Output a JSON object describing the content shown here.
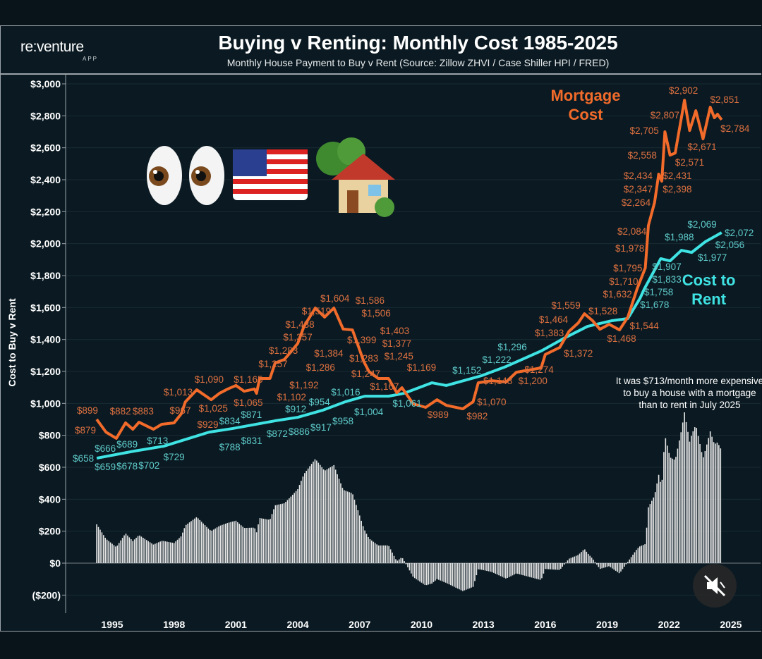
{
  "header": {
    "logo": "re:venture",
    "logo_sub": "APP",
    "title": "Buying v Renting: Monthly Cost 1985-2025",
    "subtitle": "Monthly House Payment to Buy v Rent (Source: Zillow ZHVI / Case Shiller HPI / FRED)"
  },
  "decorations": [
    "eyes-emoji",
    "us-flag-emoji",
    "house-with-tree-emoji"
  ],
  "mute_button": {
    "icon": "muted-speaker-icon"
  },
  "colors": {
    "mortgage": "#f26b2a",
    "mortgage_label": "#dd7040",
    "rent": "#3fe3e3",
    "rent_label": "#5ecbcb",
    "diff": "#e6e6e6",
    "grid": "#182a33"
  },
  "chart_data": {
    "type": "line",
    "title": "Buying v Renting: Monthly Cost 1985-2025",
    "ylabel": "Cost to Buy v Rent",
    "xlabel": "",
    "ylim": [
      -250,
      3050
    ],
    "xlim": [
      1992.5,
      2026.4
    ],
    "grid": true,
    "y_ticks": [
      {
        "value": 3000,
        "label": "$3,000"
      },
      {
        "value": 2800,
        "label": "$2,800"
      },
      {
        "value": 2600,
        "label": "$2,600"
      },
      {
        "value": 2400,
        "label": "$2,400"
      },
      {
        "value": 2200,
        "label": "$2,200"
      },
      {
        "value": 2000,
        "label": "$2,000"
      },
      {
        "value": 1800,
        "label": "$1,800"
      },
      {
        "value": 1600,
        "label": "$1,600"
      },
      {
        "value": 1400,
        "label": "$1,400"
      },
      {
        "value": 1200,
        "label": "$1,200"
      },
      {
        "value": 1000,
        "label": "$1,000"
      },
      {
        "value": 800,
        "label": "$800"
      },
      {
        "value": 600,
        "label": "$600"
      },
      {
        "value": 400,
        "label": "$400"
      },
      {
        "value": 200,
        "label": "$200"
      },
      {
        "value": 0,
        "label": "$0"
      },
      {
        "value": -200,
        "label": "($200)"
      }
    ],
    "x_ticks": [
      {
        "value": 1995,
        "label": "1995"
      },
      {
        "value": 1998,
        "label": "1998"
      },
      {
        "value": 2001,
        "label": "2001"
      },
      {
        "value": 2004,
        "label": "2004"
      },
      {
        "value": 2007,
        "label": "2007"
      },
      {
        "value": 2010,
        "label": "2010"
      },
      {
        "value": 2013,
        "label": "2013"
      },
      {
        "value": 2016,
        "label": "2016"
      },
      {
        "value": 2019,
        "label": "2019"
      },
      {
        "value": 2022,
        "label": "2022"
      },
      {
        "value": 2025,
        "label": "2025"
      }
    ],
    "series": [
      {
        "name": "Mortgage Cost",
        "legend_lines": [
          "Mortgage",
          "Cost"
        ],
        "legend_at": [
          2021.0,
          2780
        ],
        "points": [
          [
            1994.25,
            900
          ],
          [
            1994.7,
            820
          ],
          [
            1995.2,
            781
          ],
          [
            1995.65,
            878
          ],
          [
            1996.0,
            838
          ],
          [
            1996.3,
            882
          ],
          [
            1997.0,
            838
          ],
          [
            1997.4,
            869
          ],
          [
            1998.0,
            878
          ],
          [
            1998.35,
            935
          ],
          [
            1998.55,
            1010
          ],
          [
            1999.1,
            1085
          ],
          [
            1999.8,
            1023
          ],
          [
            2000.2,
            1063
          ],
          [
            2000.6,
            1090
          ],
          [
            2001.0,
            1112
          ],
          [
            2001.4,
            1076
          ],
          [
            2001.9,
            1090
          ],
          [
            2002.0,
            1063
          ],
          [
            2002.15,
            1156
          ],
          [
            2002.65,
            1156
          ],
          [
            2002.9,
            1253
          ],
          [
            2003.35,
            1275
          ],
          [
            2003.7,
            1328
          ],
          [
            2004.0,
            1376
          ],
          [
            2004.3,
            1482
          ],
          [
            2004.85,
            1597
          ],
          [
            2005.3,
            1540
          ],
          [
            2005.75,
            1597
          ],
          [
            2006.2,
            1465
          ],
          [
            2006.65,
            1460
          ],
          [
            2007.2,
            1262
          ],
          [
            2007.45,
            1200
          ],
          [
            2007.9,
            1156
          ],
          [
            2008.4,
            1156
          ],
          [
            2008.8,
            1067
          ],
          [
            2009.05,
            1098
          ],
          [
            2009.6,
            997
          ],
          [
            2010.2,
            975
          ],
          [
            2010.75,
            1023
          ],
          [
            2011.2,
            988
          ],
          [
            2012.0,
            966
          ],
          [
            2012.5,
            1010
          ],
          [
            2012.75,
            1129
          ],
          [
            2013.4,
            1142
          ],
          [
            2014.1,
            1134
          ],
          [
            2014.6,
            1195
          ],
          [
            2015.8,
            1222
          ],
          [
            2016.0,
            1306
          ],
          [
            2016.7,
            1350
          ],
          [
            2017.15,
            1451
          ],
          [
            2017.6,
            1504
          ],
          [
            2017.9,
            1561
          ],
          [
            2018.3,
            1517
          ],
          [
            2018.65,
            1464
          ],
          [
            2019.1,
            1495
          ],
          [
            2019.6,
            1460
          ],
          [
            2020.0,
            1539
          ],
          [
            2020.45,
            1716
          ],
          [
            2020.85,
            1848
          ],
          [
            2021.0,
            2113
          ],
          [
            2021.3,
            2258
          ],
          [
            2021.5,
            2435
          ],
          [
            2021.65,
            2391
          ],
          [
            2021.8,
            2700
          ],
          [
            2022.05,
            2554
          ],
          [
            2022.3,
            2567
          ],
          [
            2022.75,
            2898
          ],
          [
            2023.0,
            2708
          ],
          [
            2023.3,
            2832
          ],
          [
            2023.65,
            2656
          ],
          [
            2024.0,
            2854
          ],
          [
            2024.2,
            2788
          ],
          [
            2024.35,
            2810
          ],
          [
            2024.55,
            2775
          ]
        ],
        "labels": [
          {
            "t": "$899",
            "x": 1993.8,
            "y": 957
          },
          {
            "t": "$879",
            "x": 1993.7,
            "y": 834
          },
          {
            "t": "$882",
            "x": 1995.4,
            "y": 953
          },
          {
            "t": "$883",
            "x": 1996.5,
            "y": 953
          },
          {
            "t": "$967",
            "x": 1998.3,
            "y": 957
          },
          {
            "t": "$929",
            "x": 1999.7,
            "y": 869
          },
          {
            "t": "$1,013",
            "x": 1998.2,
            "y": 1072
          },
          {
            "t": "$1,090",
            "x": 1999.7,
            "y": 1151
          },
          {
            "t": "$1,025",
            "x": 1999.9,
            "y": 970
          },
          {
            "t": "$1,065",
            "x": 2001.6,
            "y": 1006
          },
          {
            "t": "$1,165",
            "x": 2001.6,
            "y": 1151
          },
          {
            "t": "$1,102",
            "x": 2003.7,
            "y": 1041
          },
          {
            "t": "$1,192",
            "x": 2004.3,
            "y": 1116
          },
          {
            "t": "$1,257",
            "x": 2002.8,
            "y": 1248
          },
          {
            "t": "$1,283",
            "x": 2003.3,
            "y": 1332
          },
          {
            "t": "$1,357",
            "x": 2004.0,
            "y": 1416
          },
          {
            "t": "$1,438",
            "x": 2004.1,
            "y": 1495
          },
          {
            "t": "$1,519",
            "x": 2004.9,
            "y": 1579
          },
          {
            "t": "$1,604",
            "x": 2005.8,
            "y": 1659
          },
          {
            "t": "$1,586",
            "x": 2007.5,
            "y": 1645
          },
          {
            "t": "$1,506",
            "x": 2007.8,
            "y": 1566
          },
          {
            "t": "$1,384",
            "x": 2005.5,
            "y": 1314
          },
          {
            "t": "$1,286",
            "x": 2005.1,
            "y": 1226
          },
          {
            "t": "$1,399",
            "x": 2007.1,
            "y": 1398
          },
          {
            "t": "$1,283",
            "x": 2007.2,
            "y": 1284
          },
          {
            "t": "$1,247",
            "x": 2007.3,
            "y": 1187
          },
          {
            "t": "$1,167",
            "x": 2008.2,
            "y": 1107
          },
          {
            "t": "$1,403",
            "x": 2008.7,
            "y": 1456
          },
          {
            "t": "$1,377",
            "x": 2008.8,
            "y": 1376
          },
          {
            "t": "$1,245",
            "x": 2008.9,
            "y": 1297
          },
          {
            "t": "$1,169",
            "x": 2010.0,
            "y": 1226
          },
          {
            "t": "$989",
            "x": 2010.8,
            "y": 931
          },
          {
            "t": "$982",
            "x": 2012.7,
            "y": 922
          },
          {
            "t": "$1,070",
            "x": 2013.4,
            "y": 1010
          },
          {
            "t": "$1,148",
            "x": 2013.7,
            "y": 1142
          },
          {
            "t": "$1,200",
            "x": 2015.4,
            "y": 1142
          },
          {
            "t": "$1,274",
            "x": 2015.7,
            "y": 1213
          },
          {
            "t": "$1,372",
            "x": 2017.6,
            "y": 1314
          },
          {
            "t": "$1,383",
            "x": 2016.2,
            "y": 1442
          },
          {
            "t": "$1,464",
            "x": 2016.4,
            "y": 1526
          },
          {
            "t": "$1,559",
            "x": 2017.0,
            "y": 1614
          },
          {
            "t": "$1,528",
            "x": 2018.8,
            "y": 1579
          },
          {
            "t": "$1,468",
            "x": 2019.7,
            "y": 1407
          },
          {
            "t": "$1,544",
            "x": 2020.8,
            "y": 1486
          },
          {
            "t": "$1,632",
            "x": 2019.5,
            "y": 1685
          },
          {
            "t": "$1,710",
            "x": 2019.8,
            "y": 1764
          },
          {
            "t": "$1,795",
            "x": 2020.0,
            "y": 1848
          },
          {
            "t": "$1,978",
            "x": 2020.1,
            "y": 1972
          },
          {
            "t": "$2,084",
            "x": 2020.2,
            "y": 2078
          },
          {
            "t": "$2,264",
            "x": 2020.4,
            "y": 2258
          },
          {
            "t": "$2,347",
            "x": 2020.5,
            "y": 2342
          },
          {
            "t": "$2,434",
            "x": 2020.5,
            "y": 2426
          },
          {
            "t": "$2,398",
            "x": 2022.4,
            "y": 2342
          },
          {
            "t": "$2,431",
            "x": 2022.4,
            "y": 2426
          },
          {
            "t": "$2,558",
            "x": 2020.7,
            "y": 2554
          },
          {
            "t": "$2,571",
            "x": 2023.0,
            "y": 2510
          },
          {
            "t": "$2,705",
            "x": 2020.8,
            "y": 2708
          },
          {
            "t": "$2,807",
            "x": 2021.8,
            "y": 2805
          },
          {
            "t": "$2,902",
            "x": 2022.7,
            "y": 2960
          },
          {
            "t": "$2,671",
            "x": 2023.6,
            "y": 2607
          },
          {
            "t": "$2,851",
            "x": 2024.7,
            "y": 2903
          },
          {
            "t": "$2,784",
            "x": 2025.2,
            "y": 2722
          }
        ]
      },
      {
        "name": "Cost to Rent",
        "legend_lines": [
          "Cost to",
          "Rent"
        ],
        "legend_at": [
          2025.4,
          1770
        ],
        "points": [
          [
            1994.25,
            657
          ],
          [
            1996.05,
            701
          ],
          [
            1997.5,
            732
          ],
          [
            1999.7,
            820
          ],
          [
            2000.85,
            843
          ],
          [
            2002.9,
            891
          ],
          [
            2004.0,
            913
          ],
          [
            2005.2,
            957
          ],
          [
            2006.3,
            1010
          ],
          [
            2007.25,
            1045
          ],
          [
            2008.4,
            1045
          ],
          [
            2009.15,
            1063
          ],
          [
            2010.5,
            1129
          ],
          [
            2011.2,
            1112
          ],
          [
            2012.9,
            1173
          ],
          [
            2014.1,
            1231
          ],
          [
            2015.8,
            1328
          ],
          [
            2016.9,
            1407
          ],
          [
            2018.05,
            1482
          ],
          [
            2019.2,
            1517
          ],
          [
            2020.0,
            1531
          ],
          [
            2020.6,
            1659
          ],
          [
            2020.8,
            1716
          ],
          [
            2021.6,
            1906
          ],
          [
            2022.05,
            1892
          ],
          [
            2022.6,
            1958
          ],
          [
            2023.1,
            1945
          ],
          [
            2023.75,
            2011
          ],
          [
            2024.55,
            2069
          ]
        ],
        "labels": [
          {
            "t": "$658",
            "x": 1993.6,
            "y": 657
          },
          {
            "t": "$666",
            "x": 1994.3,
            "y": 719
          },
          {
            "t": "$659",
            "x": 1994.5,
            "y": 604
          },
          {
            "t": "$678",
            "x": 1995.65,
            "y": 609
          },
          {
            "t": "$689",
            "x": 1995.6,
            "y": 745
          },
          {
            "t": "$702",
            "x": 1996.6,
            "y": 613
          },
          {
            "t": "$713",
            "x": 1997.2,
            "y": 768
          },
          {
            "t": "$729",
            "x": 1998.0,
            "y": 666
          },
          {
            "t": "$788",
            "x": 2000.7,
            "y": 728
          },
          {
            "t": "$831",
            "x": 2001.7,
            "y": 768
          },
          {
            "t": "$834",
            "x": 2000.7,
            "y": 891
          },
          {
            "t": "$872",
            "x": 2003.0,
            "y": 812
          },
          {
            "t": "$871",
            "x": 2001.75,
            "y": 931
          },
          {
            "t": "$886",
            "x": 2003.55,
            "y": 825
          },
          {
            "t": "$917",
            "x": 2004.6,
            "y": 851
          },
          {
            "t": "$912",
            "x": 2003.9,
            "y": 966
          },
          {
            "t": "$954",
            "x": 2005.05,
            "y": 1010
          },
          {
            "t": "$958",
            "x": 2005.6,
            "y": 891
          },
          {
            "t": "$1,004",
            "x": 2007.0,
            "y": 948
          },
          {
            "t": "$1,016",
            "x": 2006.1,
            "y": 1072
          },
          {
            "t": "$1,061",
            "x": 2009.3,
            "y": 1001
          },
          {
            "t": "$1,152",
            "x": 2012.2,
            "y": 1209
          },
          {
            "t": "$1,222",
            "x": 2013.3,
            "y": 1275
          },
          {
            "t": "$1,296",
            "x": 2014.4,
            "y": 1354
          },
          {
            "t": "$1,678",
            "x": 2021.3,
            "y": 1619
          },
          {
            "t": "$1,758",
            "x": 2021.5,
            "y": 1698
          },
          {
            "t": "$1,833",
            "x": 2022.05,
            "y": 1778
          },
          {
            "t": "$1,907",
            "x": 2022.3,
            "y": 1857
          },
          {
            "t": "$1,977",
            "x": 2024.1,
            "y": 1914
          },
          {
            "t": "$2,056",
            "x": 2024.95,
            "y": 1994
          },
          {
            "t": "$1,988",
            "x": 2022.5,
            "y": 2042
          },
          {
            "t": "$2,069",
            "x": 2023.6,
            "y": 2122
          },
          {
            "t": "$2,072",
            "x": 2025.4,
            "y": 2069
          }
        ]
      },
      {
        "name": "Buy minus Rent difference",
        "type": "bar",
        "derived_from": "Mortgage Cost - Cost to Rent (monthly)"
      }
    ],
    "annotation": {
      "lines": [
        "It was $713/month more expensive",
        "to buy a house with a mortgage",
        "than to rent in July 2025"
      ],
      "at": [
        2023.0,
        1120
      ]
    }
  }
}
